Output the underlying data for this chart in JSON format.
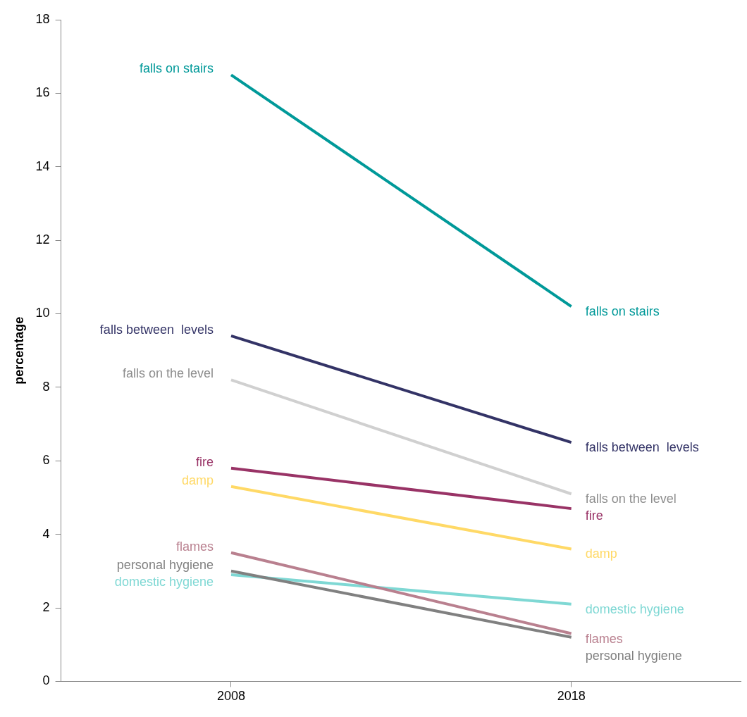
{
  "chart_data": {
    "type": "line",
    "ylabel": "percentage",
    "x": [
      2008,
      2018
    ],
    "xlim": [
      2003,
      2023
    ],
    "xticks": [
      2008,
      2018
    ],
    "ylim": [
      0,
      18
    ],
    "yticks": [
      0,
      2,
      4,
      6,
      8,
      10,
      12,
      14,
      16,
      18
    ],
    "grid": false,
    "legend": false,
    "marker": "none",
    "line_style": "solid",
    "series": [
      {
        "name": "falls on stairs",
        "color": "#009999",
        "values": [
          16.5,
          10.2
        ]
      },
      {
        "name": "falls between  levels",
        "color": "#333366",
        "values": [
          9.4,
          6.5
        ]
      },
      {
        "name": "falls on the level",
        "color": "#d0d0d0",
        "values": [
          8.2,
          5.1
        ]
      },
      {
        "name": "fire",
        "color": "#993366",
        "values": [
          5.8,
          4.7
        ]
      },
      {
        "name": "damp",
        "color": "#ffd966",
        "values": [
          5.3,
          3.6
        ]
      },
      {
        "name": "flames",
        "color": "#b9808f",
        "values": [
          3.5,
          1.3
        ]
      },
      {
        "name": "personal hygiene",
        "color": "#808080",
        "values": [
          3.0,
          1.2
        ]
      },
      {
        "name": "domestic hygiene",
        "color": "#7fd8d4",
        "values": [
          2.9,
          2.1
        ]
      }
    ]
  }
}
